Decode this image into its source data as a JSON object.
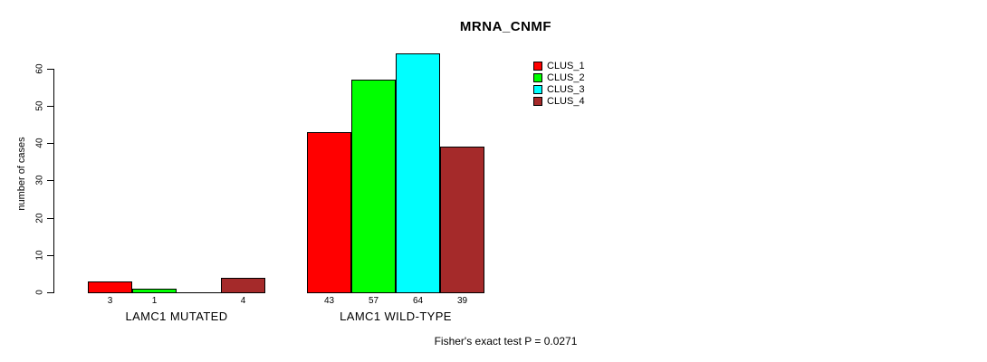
{
  "title": "MRNA_CNMF",
  "y_axis_label": "number of cases",
  "footer": "Fisher's exact test P = 0.0271",
  "legend": [
    {
      "label": "CLUS_1",
      "color": "#FF0000"
    },
    {
      "label": "CLUS_2",
      "color": "#00FF00"
    },
    {
      "label": "CLUS_3",
      "color": "#00FFFF"
    },
    {
      "label": "CLUS_4",
      "color": "#A52A2A"
    }
  ],
  "chart_data": {
    "type": "bar",
    "title": "MRNA_CNMF",
    "xlabel": "",
    "ylabel": "number of cases",
    "ylim": [
      0,
      64
    ],
    "yticks": [
      0,
      10,
      20,
      30,
      40,
      50,
      60
    ],
    "grid": false,
    "legend_position": "top-right-inside",
    "categories": [
      "LAMC1 MUTATED",
      "LAMC1 WILD-TYPE"
    ],
    "series": [
      {
        "name": "CLUS_1",
        "color": "#FF0000",
        "values": [
          3,
          43
        ]
      },
      {
        "name": "CLUS_2",
        "color": "#00FF00",
        "values": [
          1,
          57
        ]
      },
      {
        "name": "CLUS_3",
        "color": "#00FFFF",
        "values": [
          0,
          64
        ]
      },
      {
        "name": "CLUS_4",
        "color": "#A52A2A",
        "values": [
          4,
          39
        ]
      }
    ],
    "bar_value_labels": [
      [
        "3",
        "1",
        "",
        "4"
      ],
      [
        "43",
        "57",
        "64",
        "39"
      ]
    ],
    "annotation": "Fisher's exact test P = 0.0271"
  }
}
